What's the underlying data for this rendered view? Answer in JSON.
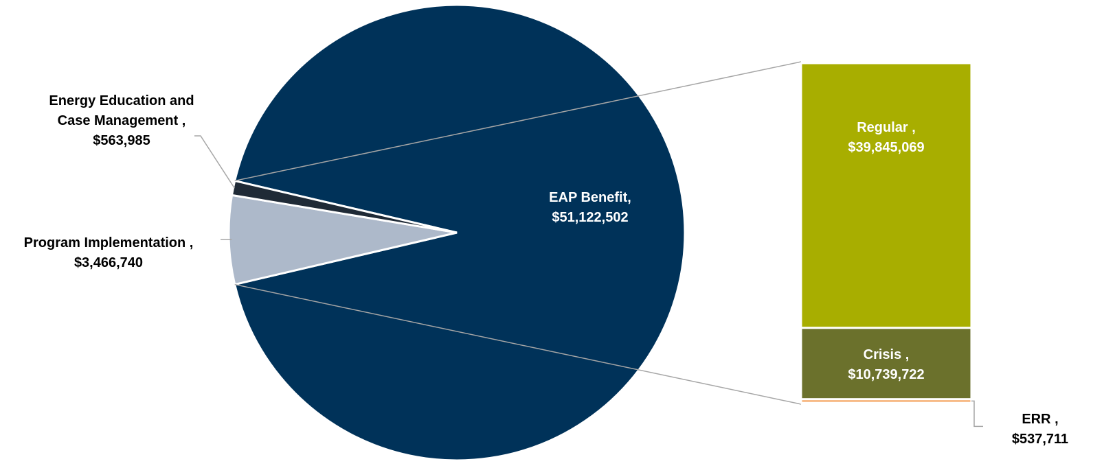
{
  "chart_data": {
    "type": "pie",
    "variant": "bar-of-pie",
    "title": "",
    "legend": "none",
    "slices": [
      {
        "category": "EAP Benefit",
        "separator": ",",
        "value": 51122502,
        "label": "$51,122,502",
        "color": "#003259",
        "label_color": "#ffffff"
      },
      {
        "category": "Program Implementation",
        "separator": " ,",
        "value": 3466740,
        "label": "$3,466,740",
        "color": "#adb9ca",
        "label_color": "#000000"
      },
      {
        "category": "Energy Education and Case Management",
        "separator": " ,",
        "value": 563985,
        "label": "$563,985",
        "color": "#1f2a36",
        "label_color": "#000000"
      }
    ],
    "breakdown": {
      "of": "EAP Benefit",
      "segments": [
        {
          "category": "Regular",
          "separator": " ,",
          "value": 39845069,
          "label": "$39,845,069",
          "color": "#a8ae00",
          "label_color": "#ffffff"
        },
        {
          "category": "Crisis",
          "separator": " ,",
          "value": 10739722,
          "label": "$10,739,722",
          "color": "#6b712c",
          "label_color": "#ffffff"
        },
        {
          "category": "ERR",
          "separator": " ,",
          "value": 537711,
          "label": "$537,711",
          "color": "#f4a460",
          "label_color": "#000000"
        }
      ]
    }
  }
}
